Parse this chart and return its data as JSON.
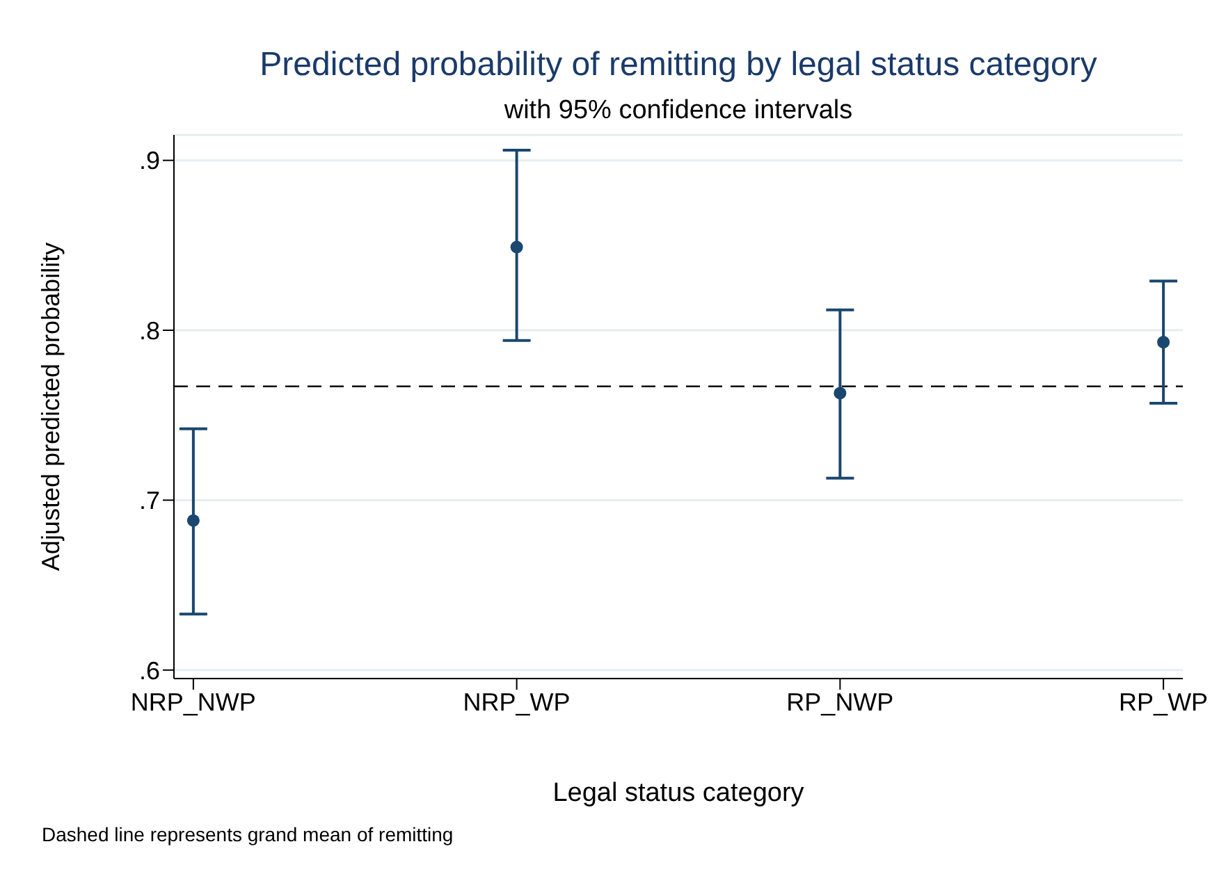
{
  "chart_data": {
    "type": "scatter",
    "title": "Predicted probability of remitting by legal status category",
    "subtitle": "with 95% confidence intervals",
    "xlabel": "Legal status category",
    "ylabel": "Adjusted predicted probability",
    "categories": [
      "NRP_NWP",
      "NRP_WP",
      "RP_NWP",
      "RP_WP"
    ],
    "series": [
      {
        "color": "#1a476f",
        "values": [
          0.688,
          0.849,
          0.763,
          0.793
        ],
        "errors": [
          [
            0.633,
            0.742
          ],
          [
            0.794,
            0.906
          ],
          [
            0.713,
            0.812
          ],
          [
            0.757,
            0.829
          ]
        ]
      }
    ],
    "ylim": [
      0.595,
      0.915
    ],
    "yticks": [
      {
        "value": 0.6,
        "label": ".6"
      },
      {
        "value": 0.7,
        "label": ".7"
      },
      {
        "value": 0.8,
        "label": ".8"
      },
      {
        "value": 0.9,
        "label": ".9"
      }
    ],
    "grid": "y",
    "marker": "circle",
    "ref_lines": [
      {
        "axis": "y",
        "value": 0.767,
        "color": "#000000",
        "line_style": "dashed"
      }
    ],
    "annotations": [
      "Dashed line represents grand mean of remitting"
    ]
  }
}
